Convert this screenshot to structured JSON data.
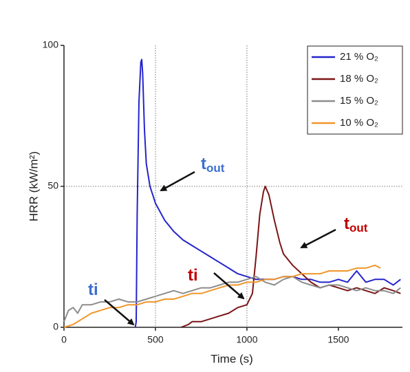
{
  "chart_data": {
    "type": "line",
    "xlabel": "Time (s)",
    "ylabel": "HRR (kW/m²)",
    "xlim": [
      0,
      1850
    ],
    "ylim": [
      0,
      100
    ],
    "xticks": [
      0,
      500,
      1000,
      1500
    ],
    "yticks": [
      0,
      50,
      100
    ],
    "reference_lines": {
      "x": [
        500,
        1000
      ],
      "y": [
        50
      ]
    },
    "legend": "upper right",
    "series": [
      {
        "name": "21 % O₂",
        "color": "#2323cc",
        "x": [
          390,
          395,
          400,
          410,
          420,
          425,
          430,
          440,
          450,
          470,
          500,
          550,
          600,
          650,
          700,
          750,
          800,
          850,
          900,
          950,
          1000,
          1050,
          1100,
          1150,
          1200,
          1250,
          1300,
          1350,
          1400,
          1450,
          1500,
          1550,
          1600,
          1650,
          1700,
          1750,
          1800,
          1840
        ],
        "values": [
          0,
          2,
          40,
          80,
          94,
          95,
          90,
          70,
          58,
          50,
          44,
          38,
          34,
          31,
          29,
          27,
          25,
          23,
          21,
          19,
          18,
          17,
          17,
          17,
          18,
          18,
          17,
          17,
          16,
          16,
          17,
          16,
          20,
          16,
          17,
          17,
          15,
          17
        ]
      },
      {
        "name": "18 % O₂",
        "color": "#7a1416",
        "x": [
          640,
          680,
          700,
          750,
          800,
          850,
          900,
          950,
          1000,
          1030,
          1050,
          1070,
          1090,
          1100,
          1120,
          1150,
          1180,
          1200,
          1250,
          1300,
          1350,
          1400,
          1450,
          1500,
          1550,
          1600,
          1650,
          1700,
          1750,
          1800,
          1840
        ],
        "values": [
          0,
          1,
          2,
          2,
          3,
          4,
          5,
          7,
          8,
          12,
          25,
          40,
          48,
          50,
          47,
          38,
          30,
          26,
          22,
          19,
          16,
          14,
          15,
          14,
          13,
          14,
          13,
          12,
          14,
          13,
          12
        ]
      },
      {
        "name": "15 % O₂",
        "color": "#8c8c8c",
        "x": [
          0,
          25,
          50,
          75,
          100,
          150,
          200,
          250,
          300,
          350,
          400,
          450,
          500,
          550,
          600,
          650,
          700,
          750,
          800,
          850,
          900,
          950,
          1000,
          1050,
          1100,
          1150,
          1200,
          1250,
          1300,
          1350,
          1400,
          1450,
          1500,
          1550,
          1600,
          1650,
          1700,
          1750,
          1800,
          1840
        ],
        "values": [
          2,
          6,
          7,
          5,
          8,
          8,
          9,
          9,
          10,
          9,
          9,
          10,
          11,
          12,
          13,
          12,
          13,
          14,
          14,
          15,
          16,
          16,
          17,
          18,
          16,
          15,
          17,
          18,
          16,
          15,
          14,
          15,
          15,
          14,
          13,
          14,
          13,
          13,
          12,
          14
        ]
      },
      {
        "name": "10 % O₂",
        "color": "#f0962a",
        "x": [
          0,
          50,
          100,
          150,
          200,
          250,
          300,
          350,
          400,
          450,
          500,
          550,
          600,
          650,
          700,
          750,
          800,
          850,
          900,
          950,
          1000,
          1050,
          1100,
          1150,
          1200,
          1250,
          1300,
          1350,
          1400,
          1450,
          1500,
          1550,
          1600,
          1650,
          1700,
          1730
        ],
        "values": [
          0,
          1,
          3,
          5,
          6,
          7,
          7,
          8,
          8,
          9,
          9,
          10,
          10,
          11,
          12,
          12,
          13,
          14,
          15,
          15,
          16,
          16,
          17,
          17,
          18,
          18,
          19,
          19,
          19,
          20,
          20,
          20,
          21,
          21,
          22,
          21
        ]
      }
    ],
    "annotations": [
      {
        "text": "ti",
        "color": "#3b6fd0"
      },
      {
        "text": "t",
        "subscript": "out",
        "color": "#3b6fd0"
      },
      {
        "text": "ti",
        "color": "#c00000"
      },
      {
        "text": "t",
        "subscript": "out",
        "color": "#c00000"
      }
    ]
  }
}
